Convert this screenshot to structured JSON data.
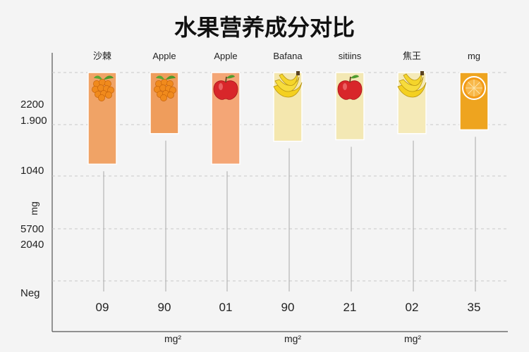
{
  "chart_data": {
    "type": "bar",
    "title": "水果营养成分对比",
    "xlabel": "",
    "ylabel": "mg",
    "categories": [
      "沙棘",
      "Apple",
      "Apple",
      "Bafana",
      "sitiins",
      "焦王",
      "mg"
    ],
    "values": [
      2200,
      1800,
      2200,
      1900,
      1880,
      1800,
      1750
    ],
    "bottom_labels": [
      "09",
      "90",
      "01",
      "90",
      "21",
      "02",
      "35"
    ],
    "y_tick_labels": [
      "2200",
      "1.900",
      "1040",
      "5700",
      "2040",
      "Neg"
    ],
    "x_axis_labels": [
      "mg²",
      "mg²",
      "mg²"
    ],
    "bar_colors": [
      "#f0a366",
      "#ef9d5c",
      "#f4a676",
      "#f4e7ae",
      "#f3e8b4",
      "#f5eab8",
      "#eea41f"
    ],
    "icons": [
      "sea-buckthorn-icon",
      "sea-buckthorn-icon",
      "apple-icon",
      "banana-icon",
      "apple-icon",
      "banana-icon",
      "orange-icon"
    ],
    "grid": true,
    "legend": "none"
  }
}
